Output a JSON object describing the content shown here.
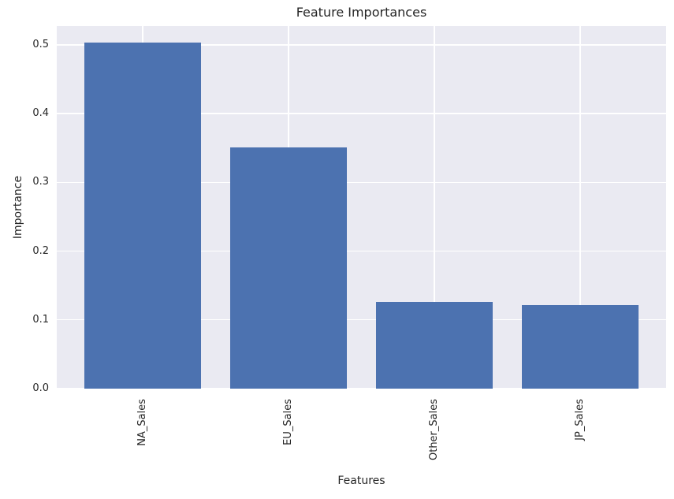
{
  "chart_data": {
    "type": "bar",
    "title": "Feature Importances",
    "xlabel": "Features",
    "ylabel": "Importance",
    "categories": [
      "NA_Sales",
      "EU_Sales",
      "Other_Sales",
      "JP_Sales"
    ],
    "values": [
      0.503,
      0.351,
      0.126,
      0.122
    ],
    "yticks": [
      0,
      0.1,
      0.2,
      0.3,
      0.4,
      0.5
    ],
    "ytick_labels": [
      "0.0",
      "0.1",
      "0.2",
      "0.3",
      "0.4",
      "0.5"
    ],
    "ylim": [
      0,
      0.5275
    ],
    "x_tick_rotation": 90,
    "bar_width_fraction": 0.8,
    "grid": true,
    "legend": false,
    "colors": {
      "bar": "#4C72B0",
      "plot_background": "#EAEAF2",
      "gridline": "#FFFFFF",
      "text": "#262626",
      "figure_background": "#FFFFFF"
    }
  }
}
